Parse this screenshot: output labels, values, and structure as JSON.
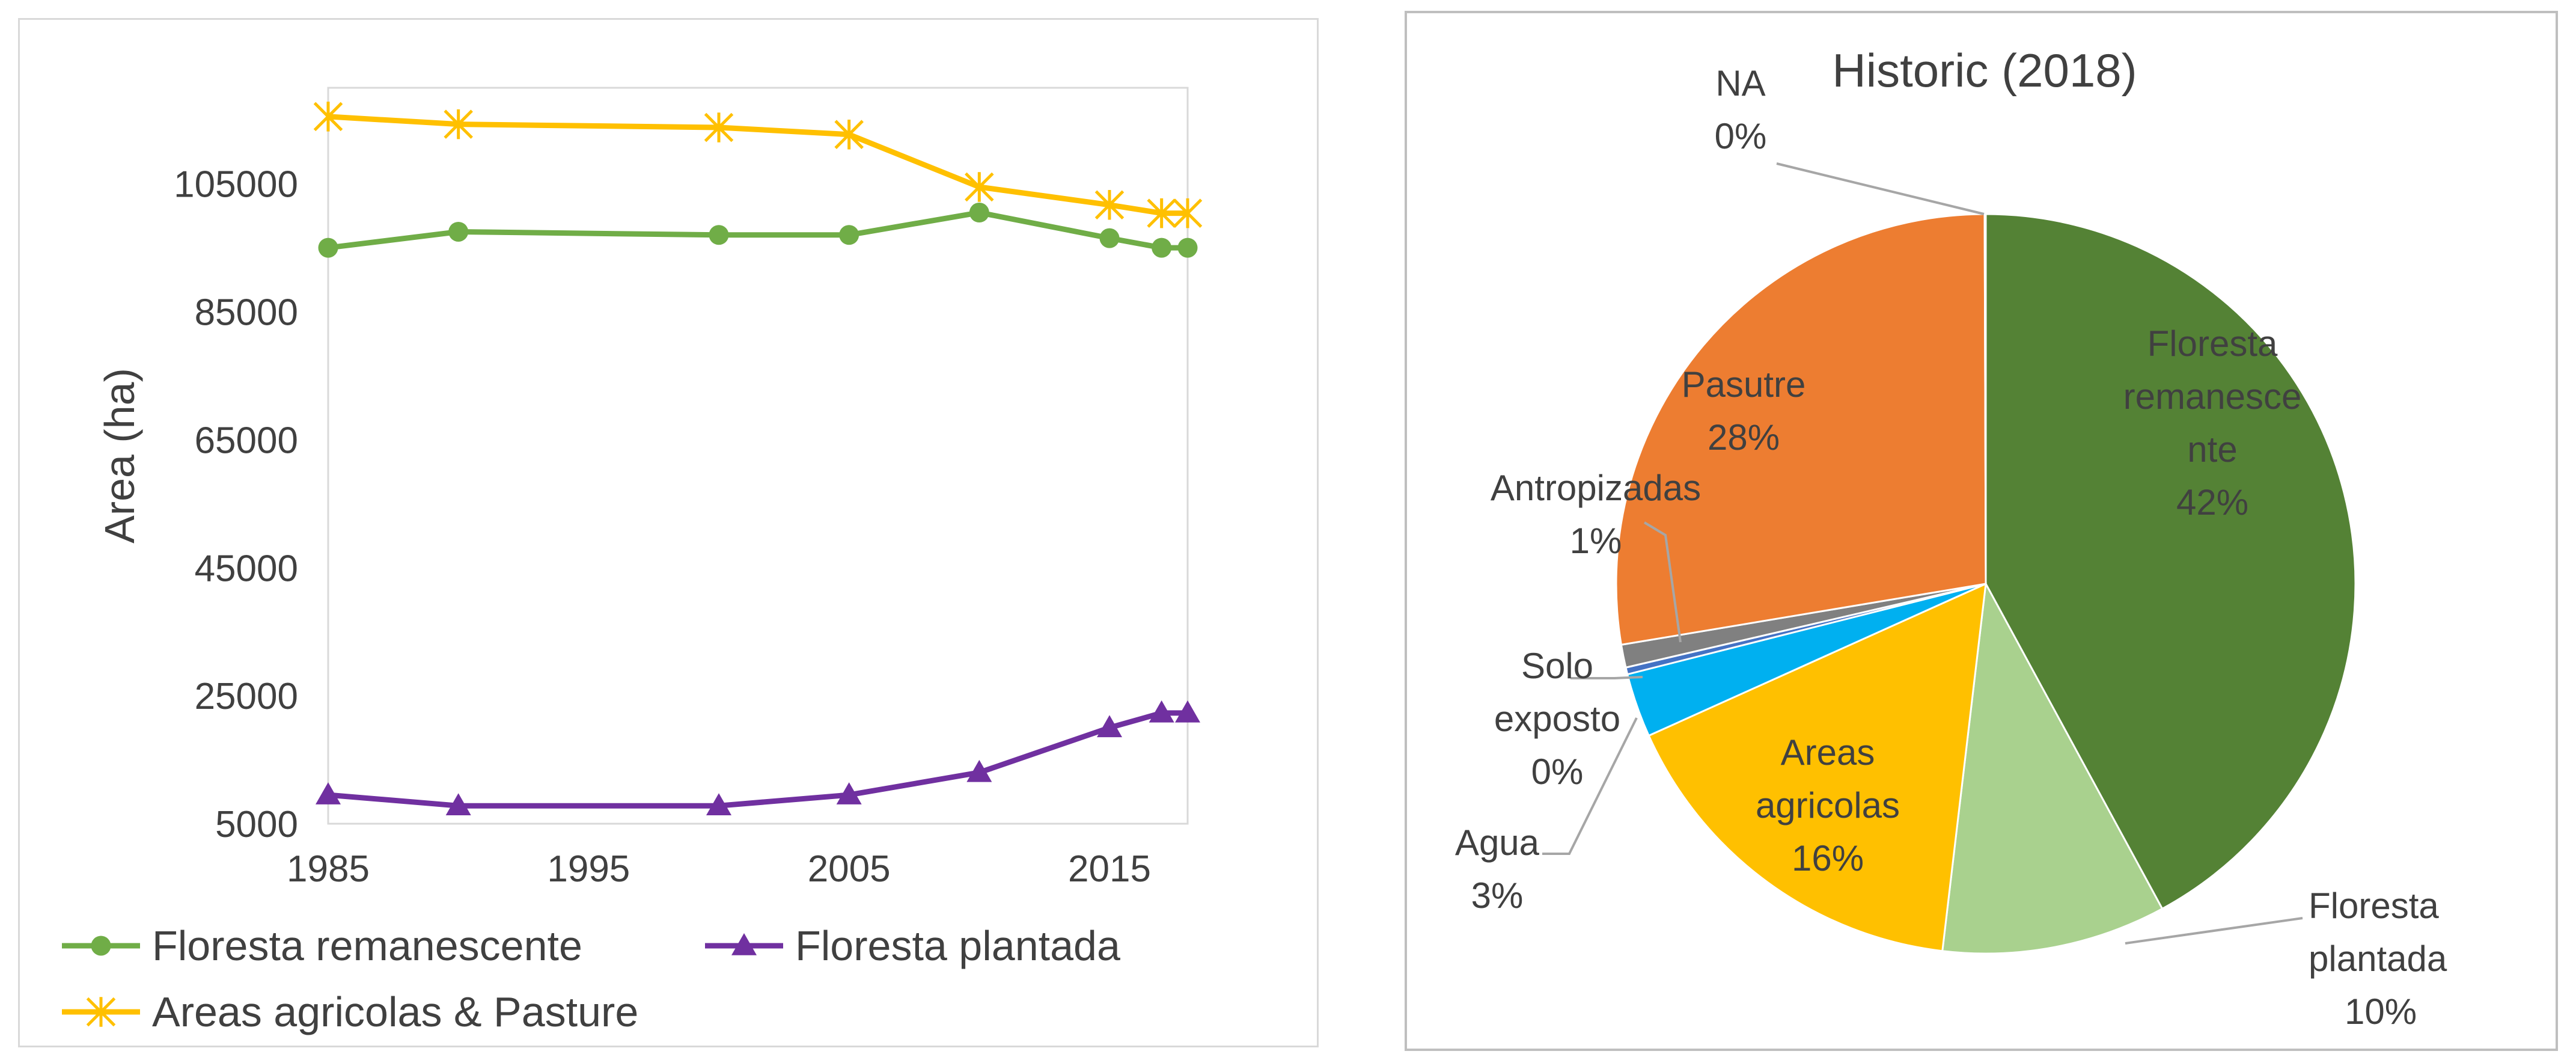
{
  "chart_data": [
    {
      "type": "line",
      "title": "",
      "xlabel": "",
      "ylabel": "Area (ha)",
      "x": [
        1985,
        1990,
        2000,
        2005,
        2010,
        2015,
        2017,
        2018
      ],
      "x_ticks": [
        "1985",
        "1995",
        "2005",
        "2015"
      ],
      "y_ticks": [
        "5000",
        "25000",
        "45000",
        "65000",
        "85000",
        "105000"
      ],
      "xlim": [
        1985,
        2018
      ],
      "ylim": [
        5000,
        120000
      ],
      "grid": false,
      "legend": "bottom",
      "series": [
        {
          "name": "Floresta remanescente",
          "color": "#70ad47",
          "marker": "circle",
          "values": [
            95000,
            97500,
            97000,
            97000,
            100500,
            96500,
            95000,
            95000
          ]
        },
        {
          "name": "Floresta plantada",
          "color": "#7030a0",
          "marker": "triangle",
          "values": [
            9500,
            7800,
            7800,
            9500,
            13000,
            20000,
            22300,
            22300
          ]
        },
        {
          "name": "Areas agricolas & Pasture",
          "color": "#ffc000",
          "marker": "asterisk",
          "values": [
            115500,
            114300,
            113800,
            112700,
            104500,
            101700,
            100400,
            100400
          ]
        }
      ]
    },
    {
      "type": "pie",
      "title": "Historic (2018)",
      "start_angle_deg": 0,
      "direction": "clockwise",
      "slices": [
        {
          "label": "Floresta remanescente",
          "label_lines": [
            "Floresta",
            "remanesce",
            "nte"
          ],
          "pct_label": "42%",
          "value": 42.1,
          "color": "#548235",
          "label_inside": true,
          "text_color": "#404040"
        },
        {
          "label": "Floresta plantada",
          "label_lines": [
            "Floresta",
            "plantada"
          ],
          "pct_label": "10%",
          "value": 9.8,
          "color": "#a9d18e",
          "label_inside": false,
          "text_color": "#404040"
        },
        {
          "label": "Areas agricolas",
          "label_lines": [
            "Areas",
            "agricolas"
          ],
          "pct_label": "16%",
          "value": 16.4,
          "color": "#ffc000",
          "label_inside": true,
          "text_color": "#404040"
        },
        {
          "label": "Agua",
          "label_lines": [
            "Agua"
          ],
          "pct_label": "3%",
          "value": 2.8,
          "color": "#00b0f0",
          "label_inside": false,
          "text_color": "#404040"
        },
        {
          "label": "Solo exposto",
          "label_lines": [
            "Solo",
            "exposto"
          ],
          "pct_label": "0%",
          "value": 0.3,
          "color": "#4472c4",
          "label_inside": false,
          "text_color": "#404040"
        },
        {
          "label": "Antropizadas",
          "label_lines": [
            "Antropizadas"
          ],
          "pct_label": "1%",
          "value": 1.0,
          "color": "#808080",
          "label_inside": false,
          "text_color": "#404040"
        },
        {
          "label": "Pasutre",
          "label_lines": [
            "Pasutre"
          ],
          "pct_label": "28%",
          "value": 27.6,
          "color": "#ed7d31",
          "label_inside": true,
          "text_color": "#404040"
        },
        {
          "label": "NA",
          "label_lines": [
            "NA"
          ],
          "pct_label": "0%",
          "value": 0.05,
          "color": "#bfbfbf",
          "label_inside": false,
          "text_color": "#404040"
        }
      ]
    }
  ]
}
